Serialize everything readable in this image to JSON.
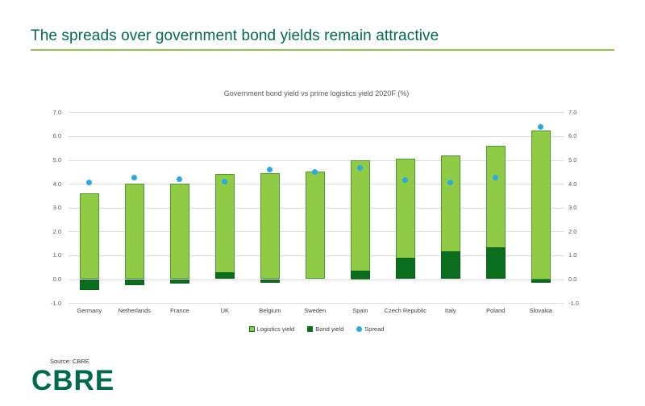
{
  "slide": {
    "title": "The spreads over government bond yields remain attractive",
    "source": "Source: CBRE",
    "logo_text": "CBRE"
  },
  "colors": {
    "title_green": "#006A4D",
    "underline_green": "#8CC63F",
    "logistics_fill": "#8FCB45",
    "logistics_border": "#4C9A2E",
    "bond_fill": "#0B6E1E",
    "spread_blue": "#29ABE2",
    "gridline": "#DCDCDC",
    "axis_text": "#595959"
  },
  "chart_data": {
    "type": "bar",
    "title": "Government bond yield vs prime logistics yield 2020F (%)",
    "categories": [
      "Germany",
      "Netherlands",
      "France",
      "UK",
      "Belgium",
      "Sweden",
      "Spain",
      "Czech Republic",
      "Italy",
      "Poland",
      "Slovakia"
    ],
    "series": [
      {
        "name": "Logistics yield",
        "type": "bar",
        "values": [
          3.6,
          4.0,
          4.0,
          4.4,
          4.45,
          4.5,
          5.0,
          5.05,
          5.2,
          5.6,
          6.25
        ]
      },
      {
        "name": "Bond yield",
        "type": "bar",
        "values": [
          -0.45,
          -0.25,
          -0.2,
          0.3,
          -0.15,
          0.0,
          0.35,
          0.9,
          1.15,
          1.35,
          -0.15
        ]
      },
      {
        "name": "Spread",
        "type": "scatter",
        "values": [
          4.05,
          4.25,
          4.2,
          4.1,
          4.6,
          4.5,
          4.65,
          4.15,
          4.05,
          4.25,
          6.4
        ]
      }
    ],
    "xlabel": "",
    "ylabel": "",
    "ylim": [
      -1.0,
      7.0
    ],
    "yticks": [
      7,
      6,
      5,
      4,
      3,
      2,
      1,
      0,
      -1
    ],
    "grid": true,
    "legend_position": "bottom",
    "dual_axis_labels": true
  }
}
